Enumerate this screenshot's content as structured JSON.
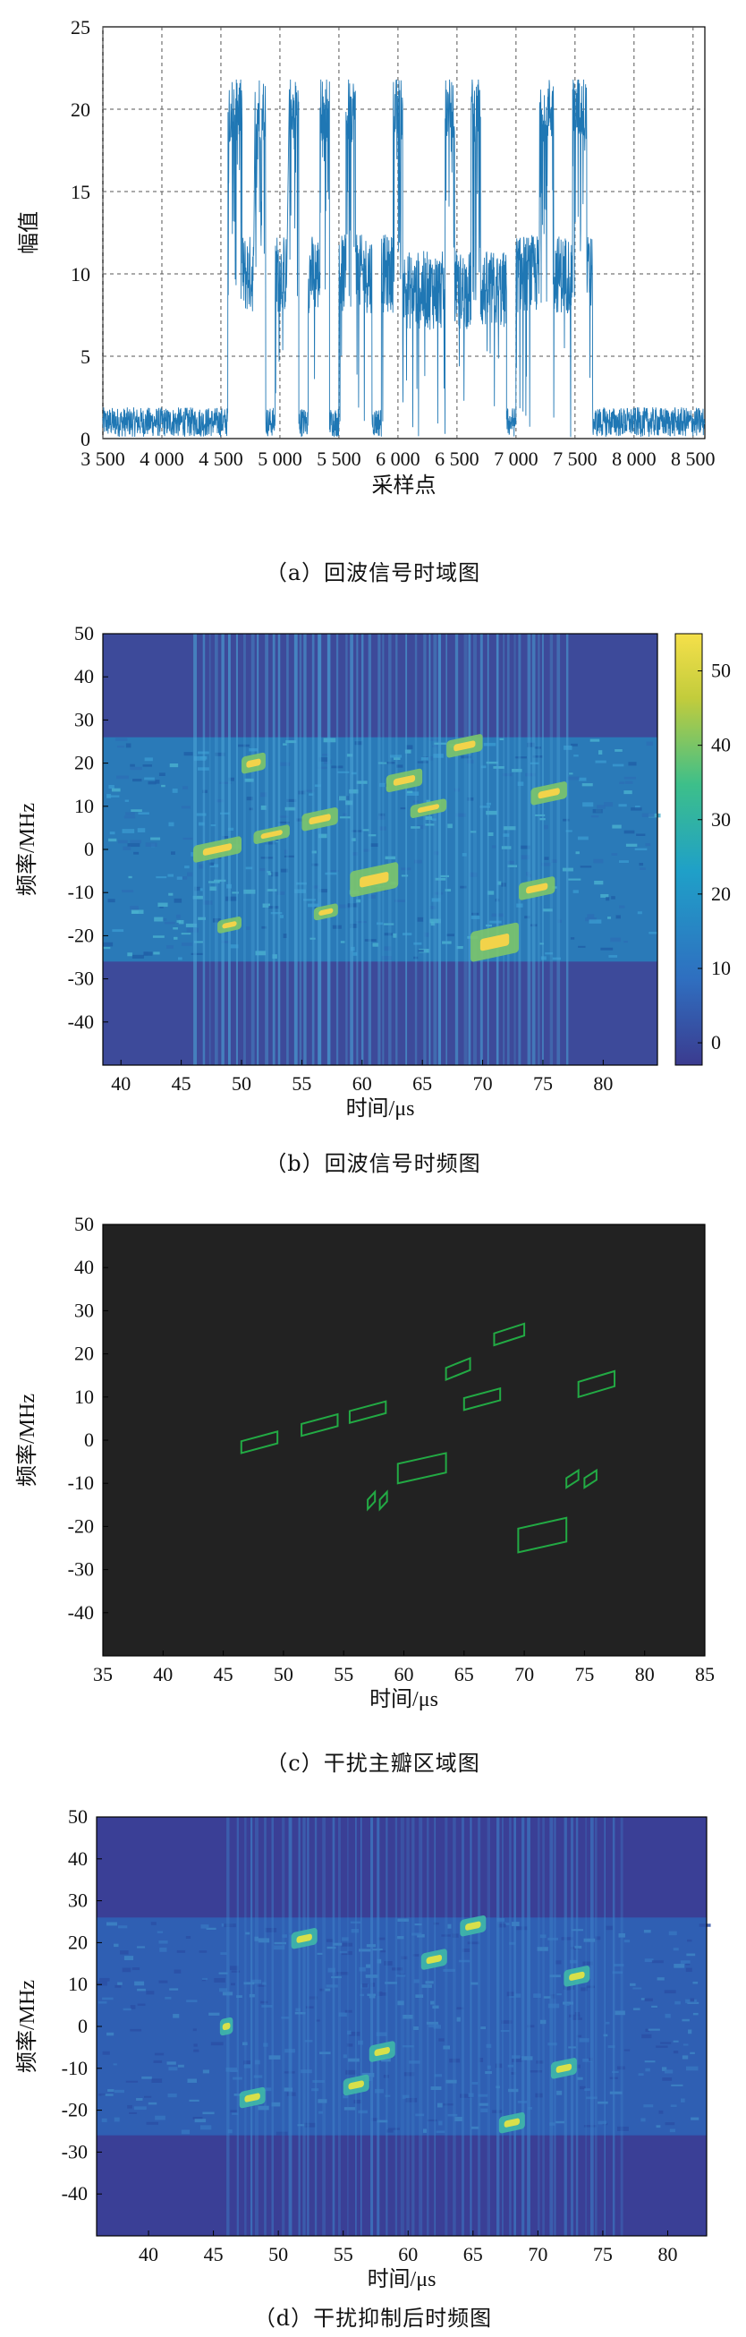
{
  "chart_data": [
    {
      "type": "line",
      "caption": "（a）回波信号时域图",
      "xlabel": "采样点",
      "ylabel": "幅值",
      "xlim": [
        3500,
        8600
      ],
      "ylim": [
        0,
        25
      ],
      "xticks": [
        "3 500",
        "4 000",
        "4 500",
        "5 000",
        "5 500",
        "6 000",
        "6 500",
        "7 000",
        "7 500",
        "8 000",
        "8 500"
      ],
      "yticks": [
        "0",
        "5",
        "10",
        "15",
        "20",
        "25"
      ],
      "grid": true,
      "series": [
        {
          "color": "#1f77b4",
          "segments": [
            {
              "x0": 3500,
              "x1": 4560,
              "level": 1
            },
            {
              "x0": 4560,
              "x1": 4680,
              "level": 20
            },
            {
              "x0": 4680,
              "x1": 4780,
              "level": 10
            },
            {
              "x0": 4790,
              "x1": 4880,
              "level": 20
            },
            {
              "x0": 4880,
              "x1": 4960,
              "level": 1
            },
            {
              "x0": 4960,
              "x1": 5060,
              "level": 10
            },
            {
              "x0": 5080,
              "x1": 5160,
              "level": 20
            },
            {
              "x0": 5160,
              "x1": 5240,
              "level": 1
            },
            {
              "x0": 5240,
              "x1": 5340,
              "level": 10
            },
            {
              "x0": 5340,
              "x1": 5420,
              "level": 20
            },
            {
              "x0": 5420,
              "x1": 5500,
              "level": 1
            },
            {
              "x0": 5500,
              "x1": 5560,
              "level": 10
            },
            {
              "x0": 5560,
              "x1": 5640,
              "level": 20
            },
            {
              "x0": 5640,
              "x1": 5780,
              "level": 10
            },
            {
              "x0": 5780,
              "x1": 5860,
              "level": 1
            },
            {
              "x0": 5860,
              "x1": 5960,
              "level": 10
            },
            {
              "x0": 5960,
              "x1": 6040,
              "level": 20
            },
            {
              "x0": 6040,
              "x1": 6400,
              "level": 9
            },
            {
              "x0": 6400,
              "x1": 6480,
              "level": 20
            },
            {
              "x0": 6480,
              "x1": 6620,
              "level": 9
            },
            {
              "x0": 6620,
              "x1": 6700,
              "level": 20
            },
            {
              "x0": 6700,
              "x1": 6920,
              "level": 9
            },
            {
              "x0": 6920,
              "x1": 7000,
              "level": 1
            },
            {
              "x0": 7000,
              "x1": 7200,
              "level": 10
            },
            {
              "x0": 7200,
              "x1": 7320,
              "level": 20
            },
            {
              "x0": 7320,
              "x1": 7480,
              "level": 10
            },
            {
              "x0": 7480,
              "x1": 7600,
              "level": 20
            },
            {
              "x0": 7600,
              "x1": 7650,
              "level": 10
            },
            {
              "x0": 7650,
              "x1": 8600,
              "level": 1
            }
          ]
        }
      ]
    },
    {
      "type": "heatmap",
      "caption": "（b）回波信号时频图",
      "xlabel": "时间/μs",
      "ylabel": "频率/MHz",
      "xlim": [
        38.5,
        84.5
      ],
      "ylim": [
        -50,
        50
      ],
      "xticks": [
        40,
        45,
        50,
        55,
        60,
        65,
        70,
        75,
        80
      ],
      "yticks": [
        50,
        40,
        30,
        20,
        10,
        0,
        -10,
        -20,
        -30,
        -40
      ],
      "colorbar": {
        "min": -3,
        "max": 55,
        "ticks": [
          0,
          10,
          20,
          30,
          40,
          50
        ]
      },
      "signal_time": [
        46,
        77
      ],
      "band": [
        -26,
        26
      ],
      "features": [
        {
          "t0": 46,
          "t1": 50,
          "f0": -2,
          "f1": 2
        },
        {
          "t0": 51,
          "t1": 54,
          "f0": 2,
          "f1": 5
        },
        {
          "t0": 55,
          "t1": 58,
          "f0": 5,
          "f1": 9
        },
        {
          "t0": 56,
          "t1": 58,
          "f0": -16,
          "f1": -13
        },
        {
          "t0": 59,
          "t1": 63,
          "f0": -10,
          "f1": -4
        },
        {
          "t0": 62,
          "t1": 65,
          "f0": 14,
          "f1": 18
        },
        {
          "t0": 64,
          "t1": 67,
          "f0": 8,
          "f1": 11
        },
        {
          "t0": 67,
          "t1": 70,
          "f0": 22,
          "f1": 26
        },
        {
          "t0": 69,
          "t1": 73,
          "f0": -25,
          "f1": -18
        },
        {
          "t0": 73,
          "t1": 76,
          "f0": -11,
          "f1": -7
        },
        {
          "t0": 74,
          "t1": 77,
          "f0": 11,
          "f1": 15
        },
        {
          "t0": 48,
          "t1": 50,
          "f0": -19,
          "f1": -16
        },
        {
          "t0": 50,
          "t1": 52,
          "f0": 18,
          "f1": 22
        }
      ]
    },
    {
      "type": "contour",
      "caption": "（c）干扰主瓣区域图",
      "xlabel": "时间/μs",
      "ylabel": "频率/MHz",
      "xlim": [
        35,
        85
      ],
      "ylim": [
        -50,
        50
      ],
      "xticks": [
        35,
        40,
        45,
        50,
        55,
        60,
        65,
        70,
        75,
        80,
        85
      ],
      "yticks": [
        50,
        40,
        30,
        20,
        10,
        0,
        -10,
        -20,
        -30,
        -40
      ],
      "contour_color": "#22aa44",
      "background": "#222222",
      "regions": [
        {
          "t0": 46.5,
          "t1": 49.5,
          "f0": -3,
          "f1": 2
        },
        {
          "t0": 51.5,
          "t1": 54.5,
          "f0": 1,
          "f1": 6
        },
        {
          "t0": 55.5,
          "t1": 58.5,
          "f0": 4,
          "f1": 9
        },
        {
          "t0": 57,
          "t1": 57.6,
          "f0": -16,
          "f1": -12
        },
        {
          "t0": 58,
          "t1": 58.6,
          "f0": -16,
          "f1": -12
        },
        {
          "t0": 59.5,
          "t1": 63.5,
          "f0": -10,
          "f1": -3
        },
        {
          "t0": 63.5,
          "t1": 65.5,
          "f0": 14,
          "f1": 19
        },
        {
          "t0": 65,
          "t1": 68,
          "f0": 7,
          "f1": 12
        },
        {
          "t0": 67.5,
          "t1": 70,
          "f0": 22,
          "f1": 27
        },
        {
          "t0": 69.5,
          "t1": 73.5,
          "f0": -26,
          "f1": -18
        },
        {
          "t0": 73.5,
          "t1": 74.5,
          "f0": -11,
          "f1": -7
        },
        {
          "t0": 75,
          "t1": 76,
          "f0": -11,
          "f1": -7
        },
        {
          "t0": 74.5,
          "t1": 77.5,
          "f0": 10,
          "f1": 16
        }
      ]
    },
    {
      "type": "heatmap",
      "caption": "（d）干扰抑制后时频图",
      "xlabel": "时间/μs",
      "ylabel": "频率/MHz",
      "xlim": [
        36,
        83
      ],
      "ylim": [
        -50,
        50
      ],
      "xticks": [
        40,
        45,
        50,
        55,
        60,
        65,
        70,
        75,
        80
      ],
      "yticks": [
        50,
        40,
        30,
        20,
        10,
        0,
        -10,
        -20,
        -30,
        -40
      ],
      "signal_time": [
        46,
        77
      ],
      "band": [
        -26,
        26
      ],
      "features": [
        {
          "t0": 45.5,
          "t1": 46.5,
          "f0": -2,
          "f1": 2
        },
        {
          "t0": 47,
          "t1": 49,
          "f0": -19,
          "f1": -15
        },
        {
          "t0": 51,
          "t1": 53,
          "f0": 19,
          "f1": 23
        },
        {
          "t0": 55,
          "t1": 57,
          "f0": -16,
          "f1": -12
        },
        {
          "t0": 57,
          "t1": 59,
          "f0": -8,
          "f1": -4
        },
        {
          "t0": 61,
          "t1": 63,
          "f0": 14,
          "f1": 18
        },
        {
          "t0": 64,
          "t1": 66,
          "f0": 22,
          "f1": 26
        },
        {
          "t0": 67,
          "t1": 69,
          "f0": -25,
          "f1": -21
        },
        {
          "t0": 71,
          "t1": 73,
          "f0": -12,
          "f1": -8
        },
        {
          "t0": 72,
          "t1": 74,
          "f0": 10,
          "f1": 14
        }
      ]
    }
  ]
}
